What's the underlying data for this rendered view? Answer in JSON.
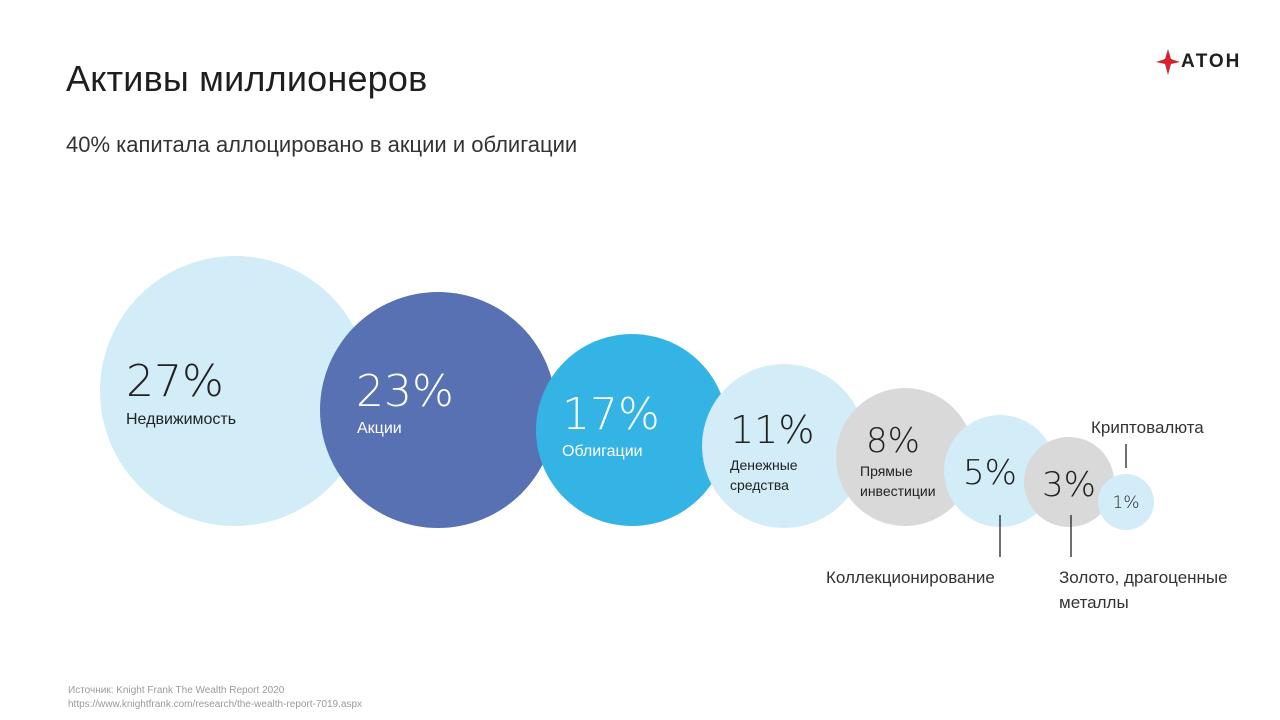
{
  "page": {
    "title": "Активы миллионеров",
    "subtitle": "40% капитала аллоцировано в акции и облигации"
  },
  "logo": {
    "text": "АТОН",
    "icon": "aton-logo-icon",
    "color": "#d8232f"
  },
  "source": {
    "line1": "Источник: Knight Frank The Wealth Report 2020",
    "line2": "https://www.knightfrank.com/research/the-wealth-report-7019.aspx"
  },
  "chart_data": {
    "type": "bubble",
    "unit": "%",
    "categories": [
      {
        "label": "Недвижимость",
        "value": 27,
        "value_text": "27%",
        "color": "#d2ecf8",
        "text_color": "#222222"
      },
      {
        "label": "Акции",
        "value": 23,
        "value_text": "23%",
        "color": "#5871b3",
        "text_color": "#ffffff"
      },
      {
        "label": "Облигации",
        "value": 17,
        "value_text": "17%",
        "color": "#33b4e4",
        "text_color": "#ffffff"
      },
      {
        "label": "Денежные средства",
        "value": 11,
        "value_text": "11%",
        "color": "#d2ecf8",
        "text_color": "#222222"
      },
      {
        "label": "Прямые инвестиции",
        "value": 8,
        "value_text": "8%",
        "color": "#d9d9d9",
        "text_color": "#222222"
      },
      {
        "label": "Коллекционирование",
        "value": 5,
        "value_text": "5%",
        "color": "#d2ecf8",
        "text_color": "#222222"
      },
      {
        "label": "Золото, драгоценные металлы",
        "value": 3,
        "value_text": "3%",
        "color": "#d9d9d9",
        "text_color": "#222222"
      },
      {
        "label": "Криптовалюта",
        "value": 1,
        "value_text": "1%",
        "color": "#d2ecf8",
        "text_color": "#222222"
      }
    ]
  }
}
